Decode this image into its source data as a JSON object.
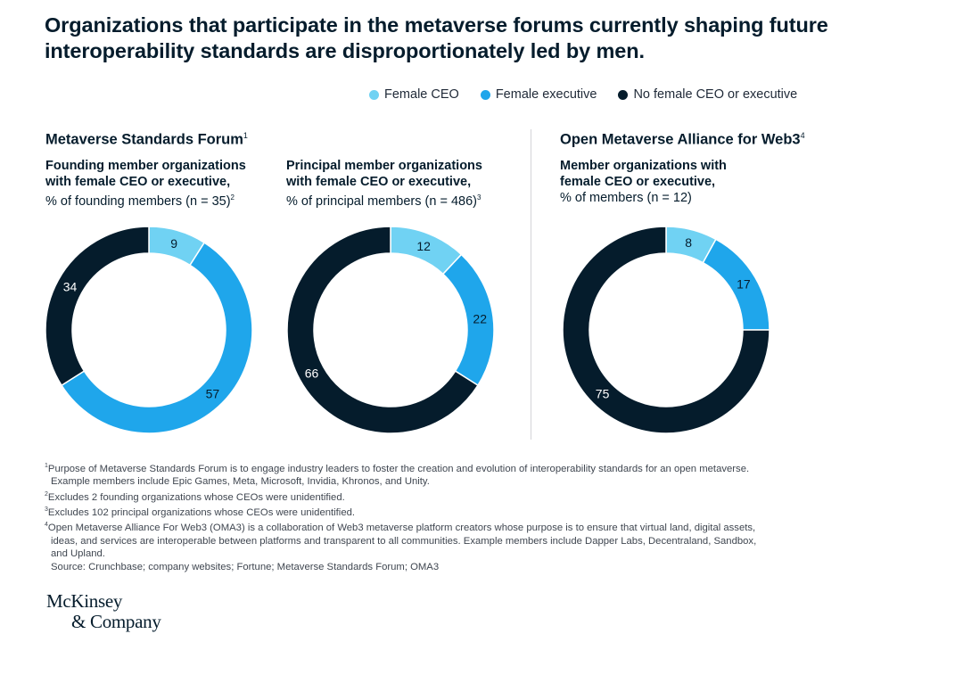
{
  "title": "Organizations that participate in the metaverse forums currently shaping future interoperability standards are disproportionately led by men.",
  "colors": {
    "female_ceo": "#70d2f3",
    "female_exec": "#1fa6eb",
    "none": "#051c2c"
  },
  "legend": [
    {
      "label": "Female CEO",
      "color": "#70d2f3"
    },
    {
      "label": "Female executive",
      "color": "#1fa6eb"
    },
    {
      "label": "No female CEO or executive",
      "color": "#051c2c"
    }
  ],
  "groups": {
    "msf": {
      "title": "Metaverse Standards Forum",
      "sup": "1"
    },
    "oma": {
      "title": "Open Metaverse Alliance for Web3",
      "sup": "4"
    }
  },
  "subtitles": {
    "founding": {
      "bold": "Founding member organizations with female CEO or executive,",
      "normal": "% of founding members (n = 35)",
      "sup": "2"
    },
    "principal": {
      "bold": "Principal member organizations with female CEO or executive,",
      "normal": "% of principal members (n = 486)",
      "sup": "3"
    },
    "oma": {
      "bold": "Member organizations with female CEO or executive,",
      "normal": "% of members (n = 12)",
      "sup": ""
    }
  },
  "chart_data": [
    {
      "type": "pie",
      "donut": true,
      "title": "Founding member organizations with female CEO or executive",
      "categories": [
        "Female CEO",
        "Female executive",
        "No female CEO or executive"
      ],
      "values": [
        9,
        57,
        34
      ],
      "unit": "%"
    },
    {
      "type": "pie",
      "donut": true,
      "title": "Principal member organizations with female CEO or executive",
      "categories": [
        "Female CEO",
        "Female executive",
        "No female CEO or executive"
      ],
      "values": [
        12,
        22,
        66
      ],
      "unit": "%"
    },
    {
      "type": "pie",
      "donut": true,
      "title": "Member organizations with female CEO or executive",
      "categories": [
        "Female CEO",
        "Female executive",
        "No female CEO or executive"
      ],
      "values": [
        8,
        17,
        75
      ],
      "unit": "%"
    }
  ],
  "footnotes": [
    {
      "sup": "1",
      "text": "Purpose of Metaverse Standards Forum is to engage industry leaders to foster the creation and evolution of interoperability standards for an open metaverse.",
      "cont": "Example members include Epic Games, Meta, Microsoft, Invidia, Khronos, and Unity."
    },
    {
      "sup": "2",
      "text": "Excludes 2 founding organizations whose CEOs were unidentified.",
      "cont": ""
    },
    {
      "sup": "3",
      "text": "Excludes 102 principal organizations whose CEOs were unidentified.",
      "cont": ""
    },
    {
      "sup": "4",
      "text": "Open Metaverse Alliance For Web3 (OMA3) is a collaboration of Web3 metaverse platform creators whose purpose is to ensure that virtual land, digital assets,",
      "cont": "ideas, and services are interoperable between platforms and transparent to all communities. Example members include Dapper Labs, Decentraland, Sandbox,\nand Upland."
    }
  ],
  "source": "Source: Crunchbase; company websites; Fortune; Metaverse Standards Forum; OMA3",
  "logo": {
    "line1": "McKinsey",
    "line2": "& Company"
  }
}
